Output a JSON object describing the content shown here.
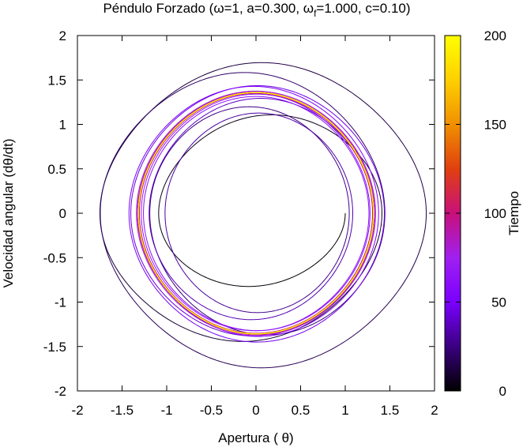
{
  "chart_data": {
    "type": "line",
    "title": "Péndulo Forzado (ω=1, a=0.300, ω",
    "title_sub": "f",
    "title_tail": "=1.000, c=0.10)",
    "xlabel": "Apertura ( θ)",
    "ylabel": "Velocidad angular (dθ/dt)",
    "xlim": [
      -2,
      2
    ],
    "ylim": [
      -2,
      2
    ],
    "xticks": [
      "-2",
      "-1.5",
      "-1",
      "-0.5",
      "0",
      "0.5",
      "1",
      "1.5",
      "2"
    ],
    "yticks": [
      "-2",
      "-1.5",
      "-1",
      "-0.5",
      "0",
      "0.5",
      "1",
      "1.5",
      "2"
    ],
    "grid": false,
    "legend": "none",
    "colorbar": {
      "label": "Tiempo",
      "range": [
        0,
        200
      ],
      "ticks": [
        "0",
        "50",
        "100",
        "150",
        "200"
      ],
      "colormap": [
        "#000000",
        "#3a0080",
        "#7a00ff",
        "#a020f0",
        "#c8107a",
        "#e04010",
        "#f09000",
        "#ffd000",
        "#ffff00"
      ]
    },
    "series": [
      {
        "description_color_by": "time",
        "initial": {
          "theta": 1.0,
          "omega": 0.0
        },
        "t_range": [
          0,
          200
        ],
        "trajectory_note": "spiral transient settling to limit cycle of amplitude about 1.36"
      }
    ]
  }
}
